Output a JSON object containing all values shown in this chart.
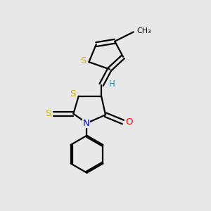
{
  "background_color": "#e8e8e8",
  "bond_color": "#000000",
  "S_color": "#c8b400",
  "N_color": "#0000ff",
  "O_color": "#ff0000",
  "H_color": "#3a9090",
  "figsize": [
    3.0,
    3.0
  ],
  "dpi": 100,
  "xlim": [
    0,
    10
  ],
  "ylim": [
    0,
    10
  ]
}
